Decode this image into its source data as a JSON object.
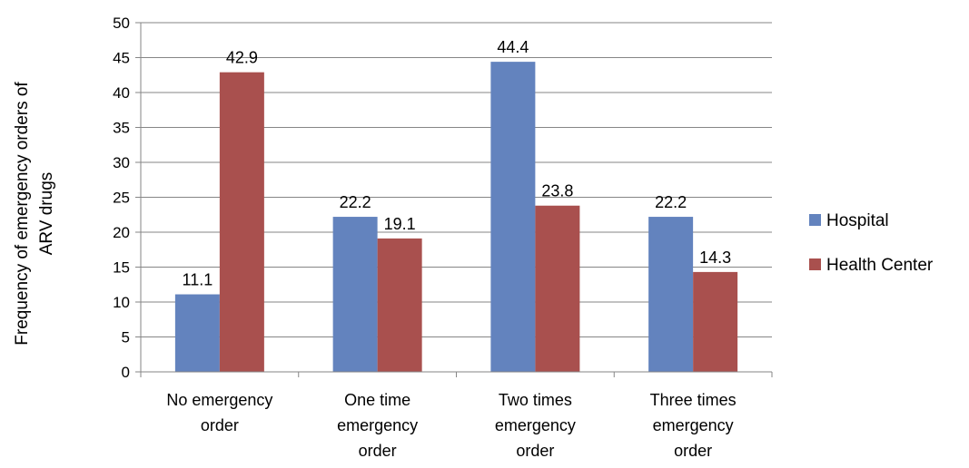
{
  "chart_data": {
    "type": "bar",
    "categories": [
      [
        "No emergency",
        "order"
      ],
      [
        "One time",
        "emergency",
        "order"
      ],
      [
        "Two times",
        "emergency",
        "order"
      ],
      [
        "Three times",
        "emergency",
        "order"
      ]
    ],
    "series": [
      {
        "name": "Hospital",
        "color": "#6383BE",
        "values": [
          11.1,
          22.2,
          44.4,
          22.2
        ]
      },
      {
        "name": "Health Center",
        "color": "#A9504E",
        "values": [
          42.9,
          19.1,
          23.8,
          14.3
        ]
      }
    ],
    "ylabel": [
      "Frequency of emergency orders of",
      "ARV drugs"
    ],
    "ylim": [
      0,
      50
    ],
    "yticks": [
      0,
      5,
      10,
      15,
      20,
      25,
      30,
      35,
      40,
      45,
      50
    ],
    "grid": true,
    "legend": "right"
  }
}
